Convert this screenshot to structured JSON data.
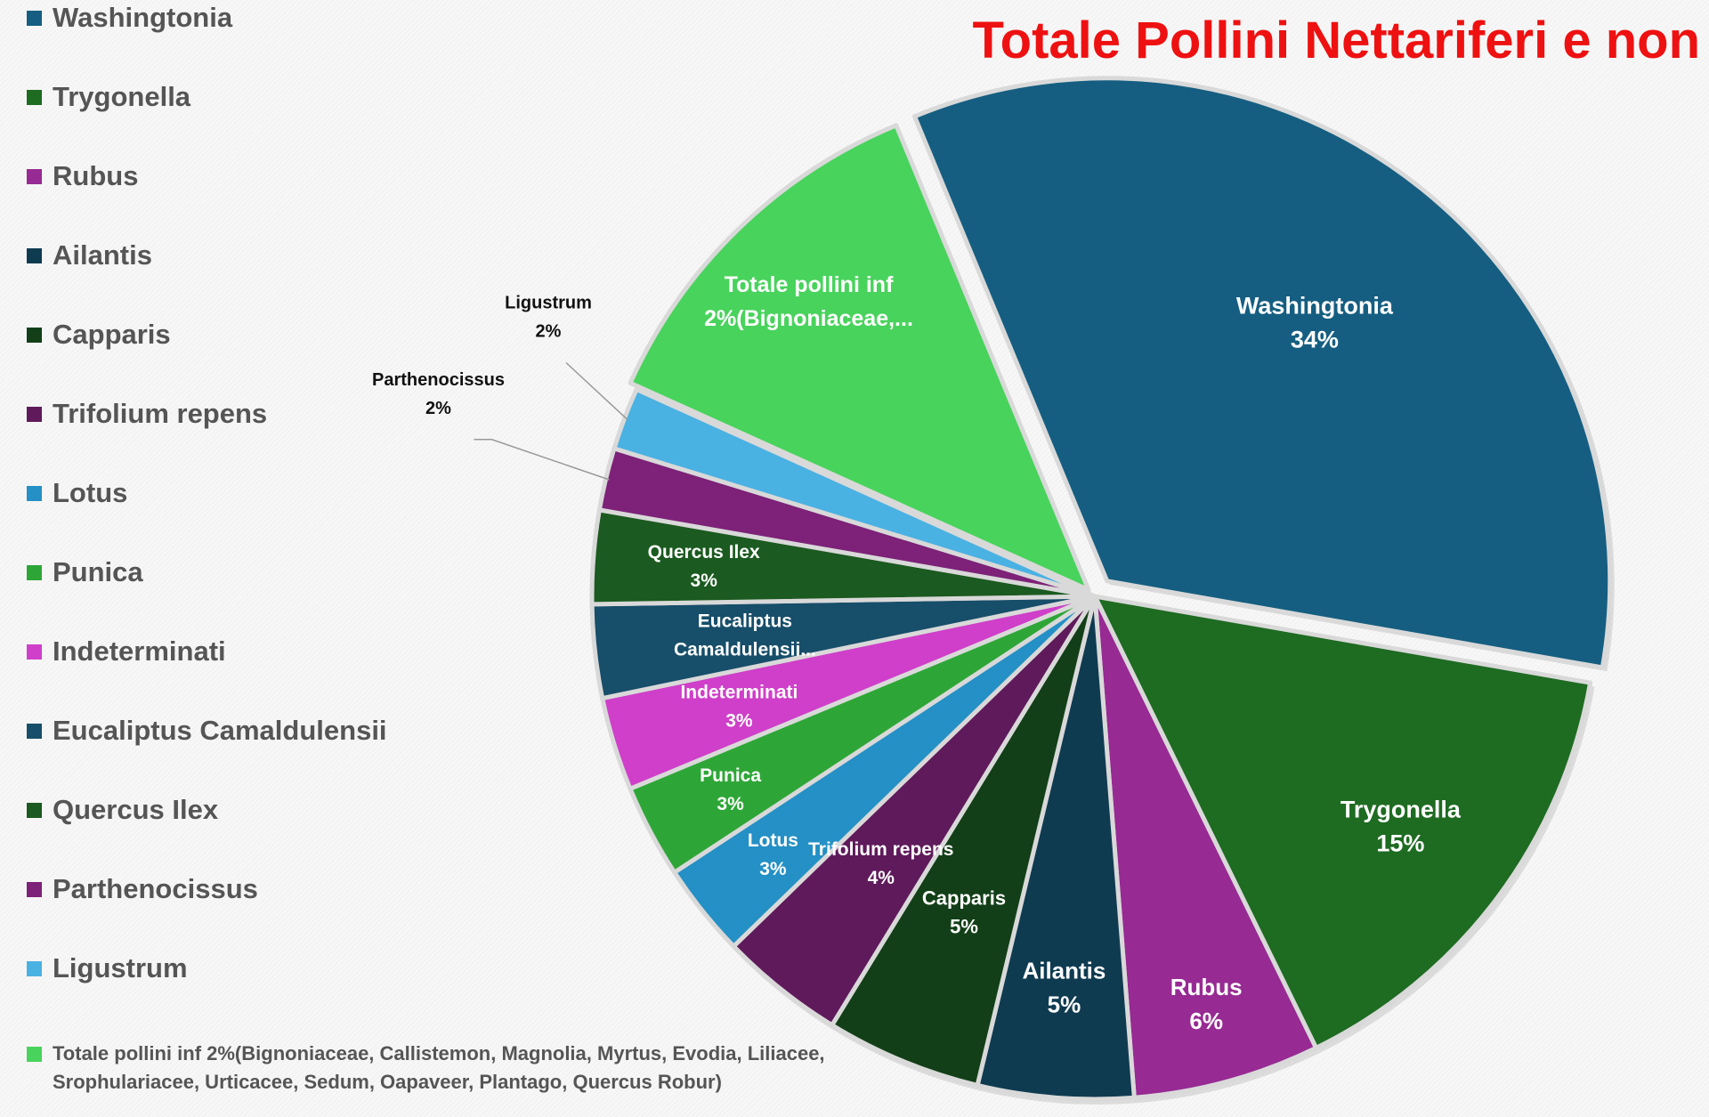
{
  "chart_data": {
    "type": "pie",
    "title": "Totale Pollini Nettariferi e non",
    "legend_position": "left",
    "slices": [
      {
        "name": "Washingtonia",
        "value": 34,
        "label_name": "Washingtonia",
        "label_value": "34%",
        "color": "#155e81"
      },
      {
        "name": "Trygonella",
        "value": 15,
        "label_name": "Trygonella",
        "label_value": "15%",
        "color": "#1e6b22"
      },
      {
        "name": "Rubus",
        "value": 6,
        "label_name": "Rubus",
        "label_value": "6%",
        "color": "#972a93"
      },
      {
        "name": "Ailantis",
        "value": 5,
        "label_name": "Ailantis",
        "label_value": "5%",
        "color": "#0f3b51"
      },
      {
        "name": "Capparis",
        "value": 5,
        "label_name": "Capparis",
        "label_value": "5%",
        "color": "#123f17"
      },
      {
        "name": "Trifolium repens",
        "value": 4,
        "label_name": "Trifolium repens",
        "label_value": "4%",
        "color": "#5f1a5b"
      },
      {
        "name": "Lotus",
        "value": 3,
        "label_name": "Lotus",
        "label_value": "3%",
        "color": "#2490c5"
      },
      {
        "name": "Punica",
        "value": 3,
        "label_name": "Punica",
        "label_value": "3%",
        "color": "#2ea637"
      },
      {
        "name": "Indeterminati",
        "value": 3,
        "label_name": "Indeterminati",
        "label_value": "3%",
        "color": "#cf3fc9"
      },
      {
        "name": "Eucaliptus Camaldulensii",
        "value": 3,
        "label_name": "Eucaliptus",
        "label_value": "Camaldulensii...",
        "color": "#174e6a"
      },
      {
        "name": "Quercus Ilex",
        "value": 3,
        "label_name": "Quercus Ilex",
        "label_value": "3%",
        "color": "#1b5a20"
      },
      {
        "name": "Parthenocissus",
        "value": 2,
        "label_name": "Parthenocissus",
        "label_value": "2%",
        "color": "#7d2278"
      },
      {
        "name": "Ligustrum",
        "value": 2,
        "label_name": "Ligustrum",
        "label_value": "2%",
        "color": "#4ab1e3"
      },
      {
        "name": "Totale pollini inf 2%(Bignoniaceae, Callistemon, Magnolia, Myrtus, Evodia, Liliacee, Srophulariacee, Urticacee, Sedum, Oapaveer, Plantago, Quercus Robur)",
        "value": 12,
        "label_name": "Totale pollini inf",
        "label_value": "2%(Bignoniaceae,...",
        "color": "#48d35c"
      }
    ]
  }
}
